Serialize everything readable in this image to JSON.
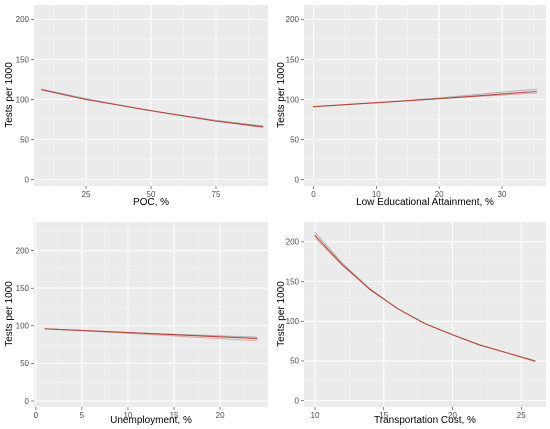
{
  "chart_data": [
    {
      "type": "line",
      "xlabel": "POC, %",
      "ylabel": "Tests per 1000",
      "xlim": [
        5,
        95
      ],
      "ylim": [
        -8,
        218
      ],
      "xticks": [
        25,
        50,
        75
      ],
      "yticks": [
        0,
        50,
        100,
        150,
        200
      ],
      "grid": true,
      "series": [
        {
          "x": [
            8,
            25,
            50,
            75,
            93
          ],
          "values": [
            113,
            101,
            86,
            74,
            67
          ]
        },
        {
          "x": [
            8,
            25,
            50,
            75,
            93
          ],
          "values": [
            112,
            100,
            86,
            73,
            65
          ]
        },
        {
          "x": [
            8,
            25,
            50,
            75,
            93
          ],
          "values": [
            112,
            100,
            86,
            73,
            66
          ]
        }
      ]
    },
    {
      "type": "line",
      "xlabel": "Low Educational Attainment, %",
      "ylabel": "Tests per 1000",
      "xlim": [
        -1.5,
        37
      ],
      "ylim": [
        -8,
        218
      ],
      "xticks": [
        0,
        10,
        20,
        30
      ],
      "yticks": [
        0,
        50,
        100,
        150,
        200
      ],
      "grid": true,
      "series": [
        {
          "x": [
            0,
            10,
            20,
            35.5
          ],
          "values": [
            91,
            96,
            102,
            113
          ]
        },
        {
          "x": [
            0,
            10,
            20,
            35.5
          ],
          "values": [
            91,
            96,
            101,
            108
          ]
        },
        {
          "x": [
            0,
            10,
            20,
            35.5
          ],
          "values": [
            91,
            96,
            101,
            110
          ]
        }
      ]
    },
    {
      "type": "line",
      "xlabel": "Unemployment, %",
      "ylabel": "Tests per 1000",
      "xlim": [
        -0.2,
        25.2
      ],
      "ylim": [
        -8,
        238
      ],
      "xticks": [
        0,
        5,
        10,
        15,
        20
      ],
      "yticks": [
        0,
        50,
        100,
        150,
        200
      ],
      "grid": true,
      "series": [
        {
          "x": [
            1,
            10,
            24
          ],
          "values": [
            96,
            91,
            85
          ]
        },
        {
          "x": [
            1,
            10,
            24
          ],
          "values": [
            96,
            90,
            80
          ]
        },
        {
          "x": [
            1,
            10,
            24
          ],
          "values": [
            96,
            91,
            83
          ]
        }
      ]
    },
    {
      "type": "line",
      "xlabel": "Transportation Cost, %",
      "ylabel": "Tests per 1000",
      "xlim": [
        9.2,
        26.8
      ],
      "ylim": [
        -8,
        225
      ],
      "xticks": [
        10,
        15,
        20,
        25
      ],
      "yticks": [
        0,
        50,
        100,
        150,
        200
      ],
      "grid": true,
      "series": [
        {
          "x": [
            10,
            12,
            14,
            16,
            18,
            20,
            22,
            24,
            26
          ],
          "values": [
            212,
            173,
            141,
            116,
            97,
            83,
            70,
            60,
            50
          ]
        },
        {
          "x": [
            10,
            12,
            14,
            16,
            18,
            20,
            22,
            24,
            26
          ],
          "values": [
            205,
            170,
            140,
            116,
            97,
            83,
            70,
            60,
            49
          ]
        },
        {
          "x": [
            10,
            12,
            14,
            16,
            18,
            20,
            22,
            24,
            26
          ],
          "values": [
            208,
            171,
            140,
            116,
            97,
            83,
            70,
            60,
            50
          ]
        }
      ]
    }
  ],
  "colors": {
    "panel_bg": "#ebebeb",
    "grid_major": "#ffffff",
    "grid_minor": "#f5f5f5",
    "tick_text": "#4d4d4d",
    "series": [
      "#a6a6a6",
      "#d9a39b",
      "#b5473b"
    ]
  }
}
